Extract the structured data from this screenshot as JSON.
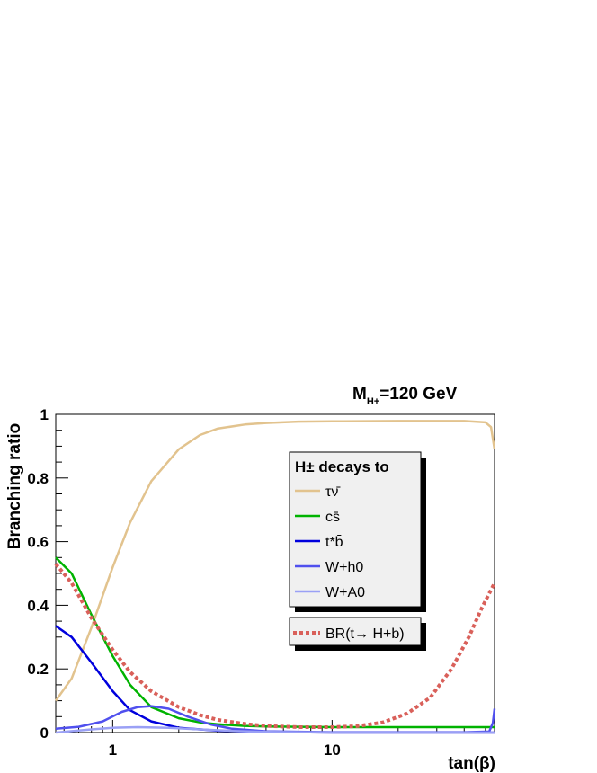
{
  "chart_data": {
    "type": "line",
    "title": "M_{H+}=120 GeV",
    "title_parts": {
      "main": "M",
      "sub": "H+",
      "rest": "=120 GeV"
    },
    "xlabel": "tan(β)",
    "ylabel": "Branching ratio",
    "x_scale": "log",
    "xlim": [
      0.55,
      55
    ],
    "ylim": [
      0,
      1
    ],
    "x_ticks": [
      1,
      10
    ],
    "x_tick_labels": [
      "1",
      "10"
    ],
    "y_ticks": [
      0,
      0.2,
      0.4,
      0.6,
      0.8,
      1
    ],
    "y_tick_labels": [
      "0",
      "0.2",
      "0.4",
      "0.6",
      "0.8",
      "1"
    ],
    "grid": false,
    "legend_position": "top-right",
    "legend": {
      "title": "H± decays to",
      "entries": [
        "τν̄",
        "cs̄",
        "t*b̄",
        "W+h0",
        "W+A0"
      ]
    },
    "legend2": {
      "entries": [
        "BR(t→ H+b)"
      ]
    },
    "series": [
      {
        "name": "τν̄",
        "color": "#e2c38e",
        "style": "solid",
        "points": [
          [
            0.55,
            0.1
          ],
          [
            0.65,
            0.17
          ],
          [
            0.8,
            0.33
          ],
          [
            1.0,
            0.52
          ],
          [
            1.2,
            0.66
          ],
          [
            1.5,
            0.79
          ],
          [
            2.0,
            0.89
          ],
          [
            2.5,
            0.935
          ],
          [
            3.0,
            0.955
          ],
          [
            4.0,
            0.968
          ],
          [
            5.0,
            0.973
          ],
          [
            7.0,
            0.977
          ],
          [
            10.0,
            0.978
          ],
          [
            20.0,
            0.979
          ],
          [
            40.0,
            0.979
          ],
          [
            50.0,
            0.975
          ],
          [
            53.0,
            0.96
          ],
          [
            55.0,
            0.89
          ]
        ]
      },
      {
        "name": "cs̄",
        "color": "#00b300",
        "style": "solid",
        "points": [
          [
            0.55,
            0.55
          ],
          [
            0.65,
            0.5
          ],
          [
            0.8,
            0.37
          ],
          [
            1.0,
            0.24
          ],
          [
            1.2,
            0.15
          ],
          [
            1.5,
            0.08
          ],
          [
            2.0,
            0.045
          ],
          [
            2.5,
            0.032
          ],
          [
            3.0,
            0.026
          ],
          [
            4.0,
            0.021
          ],
          [
            5.0,
            0.019
          ],
          [
            7.0,
            0.018
          ],
          [
            10.0,
            0.017
          ],
          [
            20.0,
            0.017
          ],
          [
            40.0,
            0.017
          ],
          [
            55.0,
            0.017
          ]
        ]
      },
      {
        "name": "t*b̄",
        "color": "#0000dd",
        "style": "solid",
        "points": [
          [
            0.55,
            0.335
          ],
          [
            0.65,
            0.3
          ],
          [
            0.8,
            0.22
          ],
          [
            1.0,
            0.13
          ],
          [
            1.2,
            0.07
          ],
          [
            1.5,
            0.035
          ],
          [
            2.0,
            0.015
          ],
          [
            3.0,
            0.006
          ],
          [
            5.0,
            0.002
          ],
          [
            10.0,
            0.0
          ],
          [
            55.0,
            0.0
          ]
        ]
      },
      {
        "name": "W+h0",
        "color": "#5050ee",
        "style": "solid",
        "points": [
          [
            0.55,
            0.012
          ],
          [
            0.7,
            0.018
          ],
          [
            0.9,
            0.035
          ],
          [
            1.1,
            0.065
          ],
          [
            1.3,
            0.08
          ],
          [
            1.5,
            0.083
          ],
          [
            1.8,
            0.075
          ],
          [
            2.2,
            0.05
          ],
          [
            2.8,
            0.025
          ],
          [
            3.5,
            0.012
          ],
          [
            5.0,
            0.004
          ],
          [
            10.0,
            0.001
          ],
          [
            40.0,
            0.001
          ],
          [
            52.0,
            0.003
          ],
          [
            54.0,
            0.03
          ],
          [
            55.0,
            0.075
          ]
        ]
      },
      {
        "name": "W+A0",
        "color": "#9aa0f5",
        "style": "solid",
        "points": [
          [
            0.55,
            0.0
          ],
          [
            0.8,
            0.01
          ],
          [
            1.0,
            0.015
          ],
          [
            1.3,
            0.017
          ],
          [
            1.8,
            0.015
          ],
          [
            2.5,
            0.01
          ],
          [
            3.5,
            0.005
          ],
          [
            5.0,
            0.002
          ],
          [
            10.0,
            0.0
          ],
          [
            55.0,
            0.0
          ]
        ]
      },
      {
        "name": "BR(t→ H+b)",
        "color": "#d9605a",
        "style": "dashed",
        "points": [
          [
            0.55,
            0.53
          ],
          [
            0.65,
            0.47
          ],
          [
            0.8,
            0.36
          ],
          [
            1.0,
            0.26
          ],
          [
            1.2,
            0.19
          ],
          [
            1.5,
            0.13
          ],
          [
            2.0,
            0.08
          ],
          [
            2.5,
            0.055
          ],
          [
            3.0,
            0.04
          ],
          [
            4.0,
            0.027
          ],
          [
            5.0,
            0.021
          ],
          [
            7.0,
            0.017
          ],
          [
            10.0,
            0.017
          ],
          [
            13.0,
            0.02
          ],
          [
            17.0,
            0.032
          ],
          [
            22.0,
            0.06
          ],
          [
            28.0,
            0.11
          ],
          [
            35.0,
            0.2
          ],
          [
            42.0,
            0.3
          ],
          [
            48.0,
            0.39
          ],
          [
            55.0,
            0.47
          ]
        ]
      }
    ]
  }
}
